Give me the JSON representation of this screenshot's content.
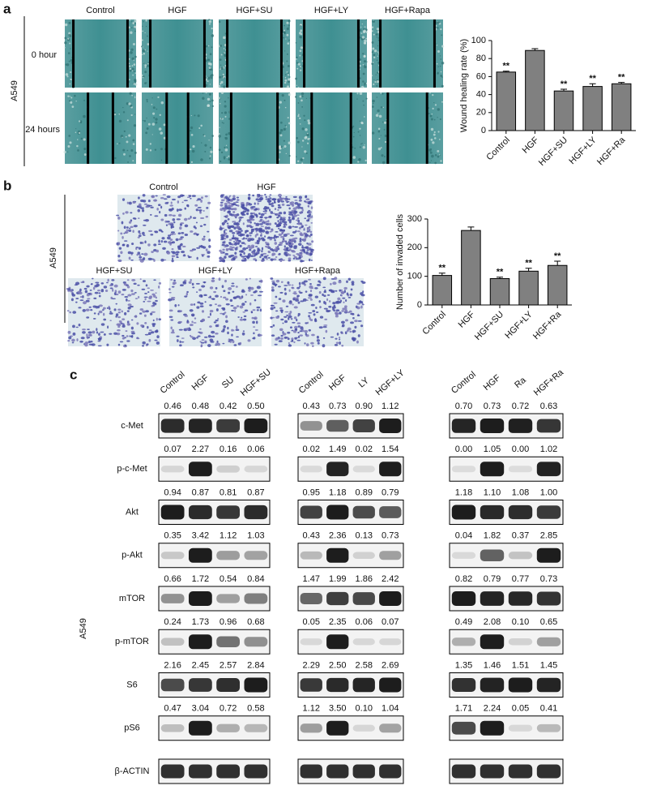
{
  "panel_a": {
    "label": "a",
    "side_label": "A549",
    "columns": [
      "Control",
      "HGF",
      "HGF+SU",
      "HGF+LY",
      "HGF+Rapa"
    ],
    "rows": [
      "0 hour",
      "24 hours"
    ]
  },
  "panel_b": {
    "label": "b",
    "side_label": "A549",
    "images": [
      "Control",
      "HGF",
      "HGF+SU",
      "HGF+LY",
      "HGF+Rapa"
    ]
  },
  "panel_c": {
    "label": "c",
    "side_label": "A549",
    "rows": [
      "c-Met",
      "p-c-Met",
      "Akt",
      "p-Akt",
      "mTOR",
      "p-mTOR",
      "S6",
      "pS6",
      "β-ACTIN"
    ],
    "groups": [
      {
        "lanes": [
          "Control",
          "HGF",
          "SU",
          "HGF+SU"
        ],
        "quant": [
          [
            "0.46",
            "0.48",
            "0.42",
            "0.50"
          ],
          [
            "0.07",
            "2.27",
            "0.16",
            "0.06"
          ],
          [
            "0.94",
            "0.87",
            "0.81",
            "0.87"
          ],
          [
            "0.35",
            "3.42",
            "1.12",
            "1.03"
          ],
          [
            "0.66",
            "1.72",
            "0.54",
            "0.84"
          ],
          [
            "0.24",
            "1.73",
            "0.96",
            "0.68"
          ],
          [
            "2.16",
            "2.45",
            "2.57",
            "2.84"
          ],
          [
            "0.47",
            "3.04",
            "0.72",
            "0.58"
          ]
        ]
      },
      {
        "lanes": [
          "Control",
          "HGF",
          "LY",
          "HGF+LY"
        ],
        "quant": [
          [
            "0.43",
            "0.73",
            "0.90",
            "1.12"
          ],
          [
            "0.02",
            "1.49",
            "0.02",
            "1.54"
          ],
          [
            "0.95",
            "1.18",
            "0.89",
            "0.79"
          ],
          [
            "0.43",
            "2.36",
            "0.13",
            "0.73"
          ],
          [
            "1.47",
            "1.99",
            "1.86",
            "2.42"
          ],
          [
            "0.05",
            "2.35",
            "0.06",
            "0.07"
          ],
          [
            "2.29",
            "2.50",
            "2.58",
            "2.69"
          ],
          [
            "1.12",
            "3.50",
            "0.10",
            "1.04"
          ]
        ]
      },
      {
        "lanes": [
          "Control",
          "HGF",
          "Ra",
          "HGF+Ra"
        ],
        "quant": [
          [
            "0.70",
            "0.73",
            "0.72",
            "0.63"
          ],
          [
            "0.00",
            "1.05",
            "0.00",
            "1.02"
          ],
          [
            "1.18",
            "1.10",
            "1.08",
            "1.00"
          ],
          [
            "0.04",
            "1.82",
            "0.37",
            "2.85"
          ],
          [
            "0.82",
            "0.79",
            "0.77",
            "0.73"
          ],
          [
            "0.49",
            "2.08",
            "0.10",
            "0.65"
          ],
          [
            "1.35",
            "1.46",
            "1.51",
            "1.45"
          ],
          [
            "1.71",
            "2.24",
            "0.05",
            "0.41"
          ]
        ]
      }
    ]
  },
  "chart_data": [
    {
      "type": "bar",
      "y_label": "Wound healing rate (%)",
      "categories": [
        "Control",
        "HGF",
        "HGF+SU",
        "HGF+LY",
        "HGF+Ra"
      ],
      "values": [
        65,
        89,
        44,
        49,
        52
      ],
      "errors": [
        1,
        2,
        2,
        3,
        1.5
      ],
      "significance": [
        "**",
        null,
        "**",
        "**",
        "**"
      ],
      "color": "#808080",
      "ylim": [
        0,
        100
      ],
      "yticks": [
        0,
        20,
        40,
        60,
        80,
        100
      ]
    },
    {
      "type": "bar",
      "y_label": "Number of invaded cells",
      "categories": [
        "Control",
        "HGF",
        "HGF+SU",
        "HGF+LY",
        "HGF+Ra"
      ],
      "values": [
        103,
        260,
        92,
        118,
        138
      ],
      "errors": [
        8,
        12,
        5,
        10,
        15
      ],
      "significance": [
        "**",
        null,
        "**",
        "**",
        "**"
      ],
      "color": "#808080",
      "ylim": [
        0,
        300
      ],
      "yticks": [
        0,
        100,
        200,
        300
      ]
    }
  ]
}
